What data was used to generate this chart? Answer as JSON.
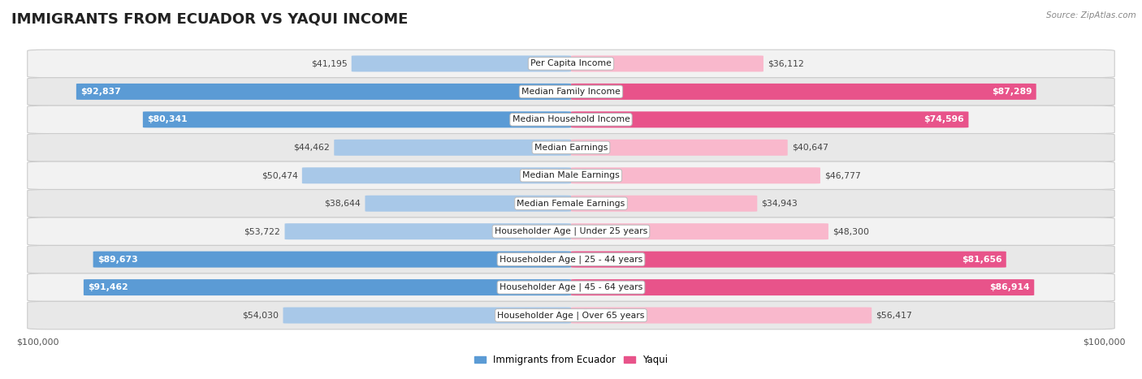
{
  "title": "IMMIGRANTS FROM ECUADOR VS YAQUI INCOME",
  "source": "Source: ZipAtlas.com",
  "categories": [
    "Per Capita Income",
    "Median Family Income",
    "Median Household Income",
    "Median Earnings",
    "Median Male Earnings",
    "Median Female Earnings",
    "Householder Age | Under 25 years",
    "Householder Age | 25 - 44 years",
    "Householder Age | 45 - 64 years",
    "Householder Age | Over 65 years"
  ],
  "ecuador_values": [
    41195,
    92837,
    80341,
    44462,
    50474,
    38644,
    53722,
    89673,
    91462,
    54030
  ],
  "yaqui_values": [
    36112,
    87289,
    74596,
    40647,
    46777,
    34943,
    48300,
    81656,
    86914,
    56417
  ],
  "ecuador_labels": [
    "$41,195",
    "$92,837",
    "$80,341",
    "$44,462",
    "$50,474",
    "$38,644",
    "$53,722",
    "$89,673",
    "$91,462",
    "$54,030"
  ],
  "yaqui_labels": [
    "$36,112",
    "$87,289",
    "$74,596",
    "$40,647",
    "$46,777",
    "$34,943",
    "$48,300",
    "$81,656",
    "$86,914",
    "$56,417"
  ],
  "max_value": 100000,
  "ecuador_color_light": "#a8c8e8",
  "ecuador_color_dark": "#5b9bd5",
  "yaqui_color_light": "#f9b8cc",
  "yaqui_color_dark": "#e8538a",
  "row_colors": [
    "#f2f2f2",
    "#e8e8e8"
  ],
  "legend_ecuador_color": "#5b9bd5",
  "legend_yaqui_color": "#e8538a",
  "title_fontsize": 13,
  "cat_fontsize": 7.8,
  "val_fontsize": 7.8,
  "axis_fontsize": 8,
  "bar_height": 0.58,
  "row_border_color": "#cccccc",
  "label_text_dark": "#444444",
  "label_text_white": "#ffffff",
  "threshold_full": 70000
}
